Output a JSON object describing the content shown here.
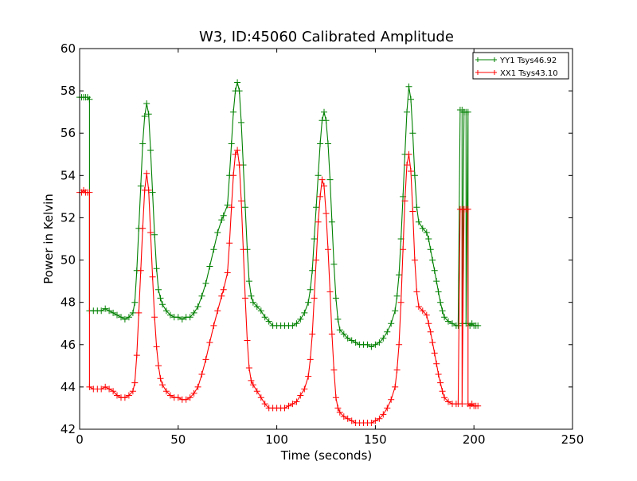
{
  "chart_data": {
    "type": "line",
    "title": "W3, ID:45060 Calibrated Amplitude",
    "xlabel": "Time (seconds)",
    "ylabel": "Power in Kelvin",
    "xlim": [
      0,
      250
    ],
    "ylim": [
      42,
      60
    ],
    "xticks": [
      0,
      50,
      100,
      150,
      200,
      250
    ],
    "yticks": [
      42,
      44,
      46,
      48,
      50,
      52,
      54,
      56,
      58,
      60
    ],
    "grid": false,
    "legend_position": "top-right",
    "series": [
      {
        "name": "YY1 Tsys46.92",
        "color": "#008000",
        "marker": "+",
        "points": [
          [
            0,
            57.7
          ],
          [
            1,
            57.7
          ],
          [
            2,
            57.7
          ],
          [
            3,
            57.7
          ],
          [
            4,
            57.7
          ],
          [
            5,
            57.6
          ],
          [
            5,
            47.6
          ],
          [
            7,
            47.6
          ],
          [
            9,
            47.6
          ],
          [
            11,
            47.6
          ],
          [
            13,
            47.7
          ],
          [
            15,
            47.6
          ],
          [
            17,
            47.5
          ],
          [
            19,
            47.4
          ],
          [
            21,
            47.3
          ],
          [
            23,
            47.2
          ],
          [
            25,
            47.3
          ],
          [
            27,
            47.5
          ],
          [
            28,
            48.0
          ],
          [
            29,
            49.5
          ],
          [
            30,
            51.5
          ],
          [
            31,
            53.5
          ],
          [
            32,
            55.5
          ],
          [
            33,
            56.8
          ],
          [
            34,
            57.4
          ],
          [
            35,
            56.9
          ],
          [
            36,
            55.2
          ],
          [
            37,
            53.2
          ],
          [
            38,
            51.2
          ],
          [
            39,
            49.6
          ],
          [
            40,
            48.6
          ],
          [
            41,
            48.2
          ],
          [
            42,
            47.9
          ],
          [
            44,
            47.6
          ],
          [
            46,
            47.4
          ],
          [
            48,
            47.3
          ],
          [
            50,
            47.3
          ],
          [
            52,
            47.2
          ],
          [
            54,
            47.3
          ],
          [
            56,
            47.3
          ],
          [
            58,
            47.5
          ],
          [
            60,
            47.8
          ],
          [
            62,
            48.3
          ],
          [
            64,
            48.9
          ],
          [
            66,
            49.7
          ],
          [
            68,
            50.5
          ],
          [
            70,
            51.3
          ],
          [
            72,
            51.9
          ],
          [
            73,
            52.1
          ],
          [
            75,
            52.6
          ],
          [
            76,
            54.0
          ],
          [
            77,
            55.5
          ],
          [
            78,
            57.0
          ],
          [
            79,
            58.0
          ],
          [
            80,
            58.4
          ],
          [
            81,
            58.0
          ],
          [
            82,
            56.5
          ],
          [
            83,
            54.5
          ],
          [
            84,
            52.5
          ],
          [
            85,
            50.5
          ],
          [
            86,
            49.0
          ],
          [
            87,
            48.3
          ],
          [
            88,
            48.0
          ],
          [
            90,
            47.8
          ],
          [
            92,
            47.6
          ],
          [
            94,
            47.3
          ],
          [
            96,
            47.1
          ],
          [
            98,
            46.9
          ],
          [
            100,
            46.9
          ],
          [
            102,
            46.9
          ],
          [
            104,
            46.9
          ],
          [
            106,
            46.9
          ],
          [
            108,
            46.9
          ],
          [
            110,
            47.0
          ],
          [
            112,
            47.2
          ],
          [
            114,
            47.5
          ],
          [
            116,
            48.0
          ],
          [
            117,
            48.6
          ],
          [
            118,
            49.5
          ],
          [
            119,
            51.0
          ],
          [
            120,
            52.5
          ],
          [
            121,
            54.0
          ],
          [
            122,
            55.5
          ],
          [
            123,
            56.6
          ],
          [
            124,
            57.0
          ],
          [
            125,
            56.6
          ],
          [
            126,
            55.5
          ],
          [
            127,
            53.8
          ],
          [
            128,
            51.8
          ],
          [
            129,
            49.8
          ],
          [
            130,
            48.2
          ],
          [
            131,
            47.2
          ],
          [
            132,
            46.7
          ],
          [
            134,
            46.5
          ],
          [
            136,
            46.3
          ],
          [
            138,
            46.2
          ],
          [
            140,
            46.1
          ],
          [
            142,
            46.0
          ],
          [
            144,
            46.0
          ],
          [
            146,
            46.0
          ],
          [
            148,
            45.9
          ],
          [
            150,
            46.0
          ],
          [
            152,
            46.1
          ],
          [
            154,
            46.3
          ],
          [
            156,
            46.6
          ],
          [
            158,
            47.0
          ],
          [
            160,
            47.6
          ],
          [
            161,
            48.3
          ],
          [
            162,
            49.3
          ],
          [
            163,
            51.0
          ],
          [
            164,
            53.0
          ],
          [
            165,
            55.0
          ],
          [
            166,
            57.0
          ],
          [
            167,
            58.2
          ],
          [
            168,
            57.6
          ],
          [
            169,
            56.0
          ],
          [
            170,
            54.0
          ],
          [
            171,
            52.5
          ],
          [
            172,
            51.8
          ],
          [
            174,
            51.5
          ],
          [
            176,
            51.3
          ],
          [
            177,
            51.0
          ],
          [
            178,
            50.5
          ],
          [
            179,
            50.0
          ],
          [
            180,
            49.5
          ],
          [
            181,
            49.0
          ],
          [
            182,
            48.5
          ],
          [
            183,
            48.0
          ],
          [
            184,
            47.6
          ],
          [
            185,
            47.3
          ],
          [
            187,
            47.1
          ],
          [
            189,
            47.0
          ],
          [
            191,
            46.9
          ],
          [
            192,
            46.9
          ],
          [
            193,
            57.1
          ],
          [
            194,
            57.1
          ],
          [
            194,
            47.0
          ],
          [
            195,
            57.0
          ],
          [
            195,
            57.0
          ],
          [
            196,
            57.0
          ],
          [
            196,
            47.0
          ],
          [
            197,
            57.0
          ],
          [
            197,
            47.0
          ],
          [
            198,
            46.9
          ],
          [
            199,
            47.0
          ],
          [
            200,
            46.9
          ],
          [
            201,
            46.9
          ],
          [
            202,
            46.9
          ]
        ]
      },
      {
        "name": "XX1 Tsys43.10",
        "color": "#ff0000",
        "marker": "+",
        "points": [
          [
            0,
            53.2
          ],
          [
            1,
            53.2
          ],
          [
            2,
            53.3
          ],
          [
            3,
            53.2
          ],
          [
            4,
            53.2
          ],
          [
            5,
            53.2
          ],
          [
            5,
            44.0
          ],
          [
            7,
            43.9
          ],
          [
            9,
            43.9
          ],
          [
            11,
            43.9
          ],
          [
            13,
            44.0
          ],
          [
            15,
            43.9
          ],
          [
            17,
            43.8
          ],
          [
            19,
            43.6
          ],
          [
            21,
            43.5
          ],
          [
            23,
            43.5
          ],
          [
            25,
            43.6
          ],
          [
            27,
            43.8
          ],
          [
            28,
            44.2
          ],
          [
            29,
            45.5
          ],
          [
            30,
            47.5
          ],
          [
            31,
            49.5
          ],
          [
            32,
            51.5
          ],
          [
            33,
            53.3
          ],
          [
            34,
            54.1
          ],
          [
            35,
            53.3
          ],
          [
            36,
            51.3
          ],
          [
            37,
            49.2
          ],
          [
            38,
            47.3
          ],
          [
            39,
            45.9
          ],
          [
            40,
            45.0
          ],
          [
            41,
            44.4
          ],
          [
            42,
            44.1
          ],
          [
            44,
            43.8
          ],
          [
            46,
            43.6
          ],
          [
            48,
            43.5
          ],
          [
            50,
            43.5
          ],
          [
            52,
            43.4
          ],
          [
            54,
            43.4
          ],
          [
            56,
            43.5
          ],
          [
            58,
            43.7
          ],
          [
            60,
            44.0
          ],
          [
            62,
            44.6
          ],
          [
            64,
            45.3
          ],
          [
            66,
            46.1
          ],
          [
            68,
            46.9
          ],
          [
            70,
            47.6
          ],
          [
            72,
            48.3
          ],
          [
            73,
            48.6
          ],
          [
            75,
            49.4
          ],
          [
            76,
            50.8
          ],
          [
            77,
            52.5
          ],
          [
            78,
            54.0
          ],
          [
            79,
            55.0
          ],
          [
            80,
            55.2
          ],
          [
            81,
            54.5
          ],
          [
            82,
            52.8
          ],
          [
            83,
            50.5
          ],
          [
            84,
            48.2
          ],
          [
            85,
            46.2
          ],
          [
            86,
            44.9
          ],
          [
            87,
            44.3
          ],
          [
            88,
            44.1
          ],
          [
            90,
            43.8
          ],
          [
            92,
            43.5
          ],
          [
            94,
            43.2
          ],
          [
            96,
            43.0
          ],
          [
            98,
            43.0
          ],
          [
            100,
            43.0
          ],
          [
            102,
            43.0
          ],
          [
            104,
            43.0
          ],
          [
            106,
            43.1
          ],
          [
            108,
            43.2
          ],
          [
            110,
            43.3
          ],
          [
            112,
            43.6
          ],
          [
            114,
            43.9
          ],
          [
            116,
            44.5
          ],
          [
            117,
            45.3
          ],
          [
            118,
            46.5
          ],
          [
            119,
            48.2
          ],
          [
            120,
            50.0
          ],
          [
            121,
            51.8
          ],
          [
            122,
            53.0
          ],
          [
            123,
            53.8
          ],
          [
            124,
            53.5
          ],
          [
            125,
            52.2
          ],
          [
            126,
            50.5
          ],
          [
            127,
            48.5
          ],
          [
            128,
            46.5
          ],
          [
            129,
            44.8
          ],
          [
            130,
            43.5
          ],
          [
            131,
            43.0
          ],
          [
            132,
            42.8
          ],
          [
            134,
            42.6
          ],
          [
            136,
            42.5
          ],
          [
            138,
            42.4
          ],
          [
            140,
            42.3
          ],
          [
            142,
            42.3
          ],
          [
            144,
            42.3
          ],
          [
            146,
            42.3
          ],
          [
            148,
            42.3
          ],
          [
            150,
            42.4
          ],
          [
            152,
            42.5
          ],
          [
            154,
            42.7
          ],
          [
            156,
            43.0
          ],
          [
            158,
            43.4
          ],
          [
            160,
            44.0
          ],
          [
            161,
            44.8
          ],
          [
            162,
            46.0
          ],
          [
            163,
            48.0
          ],
          [
            164,
            50.5
          ],
          [
            165,
            52.8
          ],
          [
            166,
            54.5
          ],
          [
            167,
            55.0
          ],
          [
            168,
            54.2
          ],
          [
            169,
            52.3
          ],
          [
            170,
            50.0
          ],
          [
            171,
            48.5
          ],
          [
            172,
            47.8
          ],
          [
            174,
            47.6
          ],
          [
            176,
            47.4
          ],
          [
            177,
            47.0
          ],
          [
            178,
            46.6
          ],
          [
            179,
            46.1
          ],
          [
            180,
            45.6
          ],
          [
            181,
            45.1
          ],
          [
            182,
            44.6
          ],
          [
            183,
            44.2
          ],
          [
            184,
            43.8
          ],
          [
            185,
            43.5
          ],
          [
            187,
            43.3
          ],
          [
            189,
            43.2
          ],
          [
            191,
            43.2
          ],
          [
            192,
            43.2
          ],
          [
            193,
            52.4
          ],
          [
            194,
            52.4
          ],
          [
            194,
            43.2
          ],
          [
            195,
            52.4
          ],
          [
            196,
            52.4
          ],
          [
            197,
            52.4
          ],
          [
            197,
            43.2
          ],
          [
            198,
            43.1
          ],
          [
            199,
            43.2
          ],
          [
            200,
            43.1
          ],
          [
            201,
            43.1
          ],
          [
            202,
            43.1
          ]
        ]
      }
    ]
  }
}
